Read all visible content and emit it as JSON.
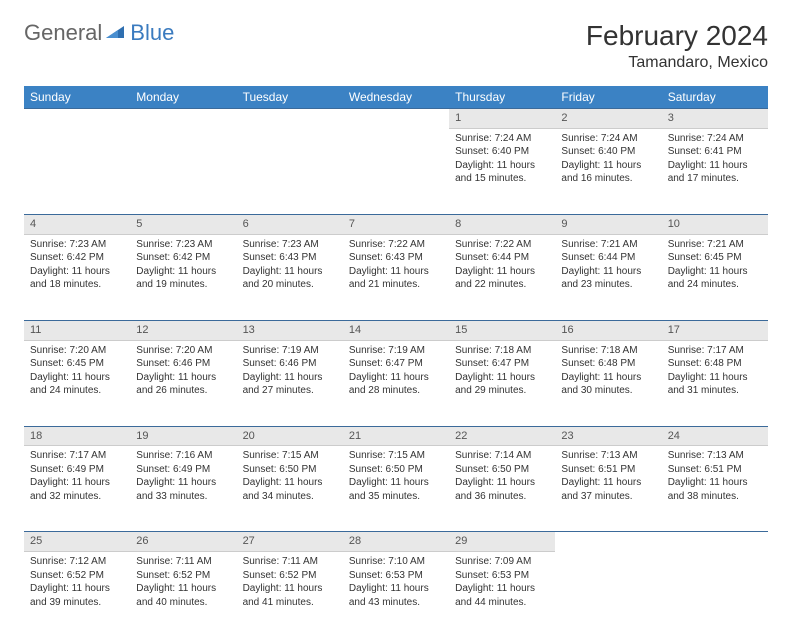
{
  "logo": {
    "part1": "General",
    "part2": "Blue"
  },
  "title": "February 2024",
  "location": "Tamandaro, Mexico",
  "weekdays": [
    "Sunday",
    "Monday",
    "Tuesday",
    "Wednesday",
    "Thursday",
    "Friday",
    "Saturday"
  ],
  "colors": {
    "header_bg": "#3b82c4",
    "header_text": "#ffffff",
    "daynum_bg": "#e8e8e8",
    "border": "#3b6a9a",
    "logo_blue": "#3b7bbf"
  },
  "rows": [
    [
      null,
      null,
      null,
      null,
      {
        "n": "1",
        "sr": "Sunrise: 7:24 AM",
        "ss": "Sunset: 6:40 PM",
        "dl": "Daylight: 11 hours and 15 minutes."
      },
      {
        "n": "2",
        "sr": "Sunrise: 7:24 AM",
        "ss": "Sunset: 6:40 PM",
        "dl": "Daylight: 11 hours and 16 minutes."
      },
      {
        "n": "3",
        "sr": "Sunrise: 7:24 AM",
        "ss": "Sunset: 6:41 PM",
        "dl": "Daylight: 11 hours and 17 minutes."
      }
    ],
    [
      {
        "n": "4",
        "sr": "Sunrise: 7:23 AM",
        "ss": "Sunset: 6:42 PM",
        "dl": "Daylight: 11 hours and 18 minutes."
      },
      {
        "n": "5",
        "sr": "Sunrise: 7:23 AM",
        "ss": "Sunset: 6:42 PM",
        "dl": "Daylight: 11 hours and 19 minutes."
      },
      {
        "n": "6",
        "sr": "Sunrise: 7:23 AM",
        "ss": "Sunset: 6:43 PM",
        "dl": "Daylight: 11 hours and 20 minutes."
      },
      {
        "n": "7",
        "sr": "Sunrise: 7:22 AM",
        "ss": "Sunset: 6:43 PM",
        "dl": "Daylight: 11 hours and 21 minutes."
      },
      {
        "n": "8",
        "sr": "Sunrise: 7:22 AM",
        "ss": "Sunset: 6:44 PM",
        "dl": "Daylight: 11 hours and 22 minutes."
      },
      {
        "n": "9",
        "sr": "Sunrise: 7:21 AM",
        "ss": "Sunset: 6:44 PM",
        "dl": "Daylight: 11 hours and 23 minutes."
      },
      {
        "n": "10",
        "sr": "Sunrise: 7:21 AM",
        "ss": "Sunset: 6:45 PM",
        "dl": "Daylight: 11 hours and 24 minutes."
      }
    ],
    [
      {
        "n": "11",
        "sr": "Sunrise: 7:20 AM",
        "ss": "Sunset: 6:45 PM",
        "dl": "Daylight: 11 hours and 24 minutes."
      },
      {
        "n": "12",
        "sr": "Sunrise: 7:20 AM",
        "ss": "Sunset: 6:46 PM",
        "dl": "Daylight: 11 hours and 26 minutes."
      },
      {
        "n": "13",
        "sr": "Sunrise: 7:19 AM",
        "ss": "Sunset: 6:46 PM",
        "dl": "Daylight: 11 hours and 27 minutes."
      },
      {
        "n": "14",
        "sr": "Sunrise: 7:19 AM",
        "ss": "Sunset: 6:47 PM",
        "dl": "Daylight: 11 hours and 28 minutes."
      },
      {
        "n": "15",
        "sr": "Sunrise: 7:18 AM",
        "ss": "Sunset: 6:47 PM",
        "dl": "Daylight: 11 hours and 29 minutes."
      },
      {
        "n": "16",
        "sr": "Sunrise: 7:18 AM",
        "ss": "Sunset: 6:48 PM",
        "dl": "Daylight: 11 hours and 30 minutes."
      },
      {
        "n": "17",
        "sr": "Sunrise: 7:17 AM",
        "ss": "Sunset: 6:48 PM",
        "dl": "Daylight: 11 hours and 31 minutes."
      }
    ],
    [
      {
        "n": "18",
        "sr": "Sunrise: 7:17 AM",
        "ss": "Sunset: 6:49 PM",
        "dl": "Daylight: 11 hours and 32 minutes."
      },
      {
        "n": "19",
        "sr": "Sunrise: 7:16 AM",
        "ss": "Sunset: 6:49 PM",
        "dl": "Daylight: 11 hours and 33 minutes."
      },
      {
        "n": "20",
        "sr": "Sunrise: 7:15 AM",
        "ss": "Sunset: 6:50 PM",
        "dl": "Daylight: 11 hours and 34 minutes."
      },
      {
        "n": "21",
        "sr": "Sunrise: 7:15 AM",
        "ss": "Sunset: 6:50 PM",
        "dl": "Daylight: 11 hours and 35 minutes."
      },
      {
        "n": "22",
        "sr": "Sunrise: 7:14 AM",
        "ss": "Sunset: 6:50 PM",
        "dl": "Daylight: 11 hours and 36 minutes."
      },
      {
        "n": "23",
        "sr": "Sunrise: 7:13 AM",
        "ss": "Sunset: 6:51 PM",
        "dl": "Daylight: 11 hours and 37 minutes."
      },
      {
        "n": "24",
        "sr": "Sunrise: 7:13 AM",
        "ss": "Sunset: 6:51 PM",
        "dl": "Daylight: 11 hours and 38 minutes."
      }
    ],
    [
      {
        "n": "25",
        "sr": "Sunrise: 7:12 AM",
        "ss": "Sunset: 6:52 PM",
        "dl": "Daylight: 11 hours and 39 minutes."
      },
      {
        "n": "26",
        "sr": "Sunrise: 7:11 AM",
        "ss": "Sunset: 6:52 PM",
        "dl": "Daylight: 11 hours and 40 minutes."
      },
      {
        "n": "27",
        "sr": "Sunrise: 7:11 AM",
        "ss": "Sunset: 6:52 PM",
        "dl": "Daylight: 11 hours and 41 minutes."
      },
      {
        "n": "28",
        "sr": "Sunrise: 7:10 AM",
        "ss": "Sunset: 6:53 PM",
        "dl": "Daylight: 11 hours and 43 minutes."
      },
      {
        "n": "29",
        "sr": "Sunrise: 7:09 AM",
        "ss": "Sunset: 6:53 PM",
        "dl": "Daylight: 11 hours and 44 minutes."
      },
      null,
      null
    ]
  ]
}
